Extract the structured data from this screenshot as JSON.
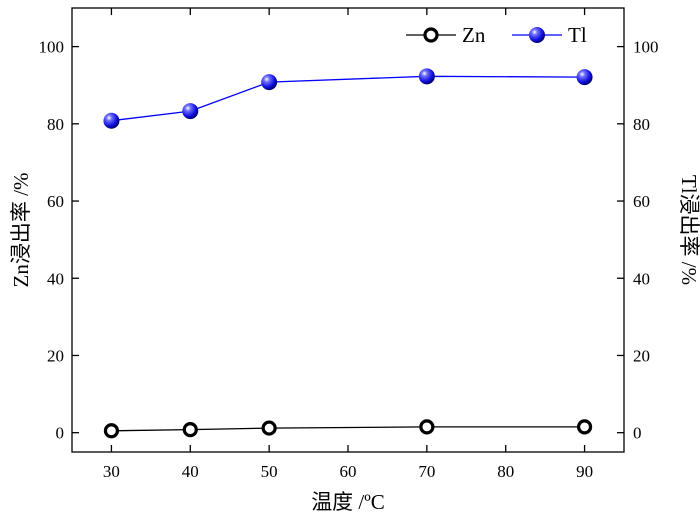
{
  "chart_data": {
    "type": "line",
    "xlabel": "温度 /ºC",
    "ylabel_left": "Zn浸出率 /%",
    "ylabel_right": "Tl浸出率 /%",
    "xlim": [
      25,
      95
    ],
    "ylim": [
      -5,
      110
    ],
    "xticks": [
      30,
      40,
      50,
      60,
      70,
      80,
      90
    ],
    "yticks": [
      0,
      20,
      40,
      60,
      80,
      100
    ],
    "x": [
      30,
      40,
      50,
      70,
      90
    ],
    "series": [
      {
        "name": "Zn",
        "values": [
          0.5,
          0.8,
          1.2,
          1.5,
          1.5
        ],
        "color": "#000000",
        "marker": "open-circle"
      },
      {
        "name": "Tl",
        "values": [
          80.8,
          83.3,
          90.8,
          92.3,
          92.1
        ],
        "color": "#0000ff",
        "marker": "filled-sphere"
      }
    ],
    "legend": "top-right",
    "grid": false
  }
}
